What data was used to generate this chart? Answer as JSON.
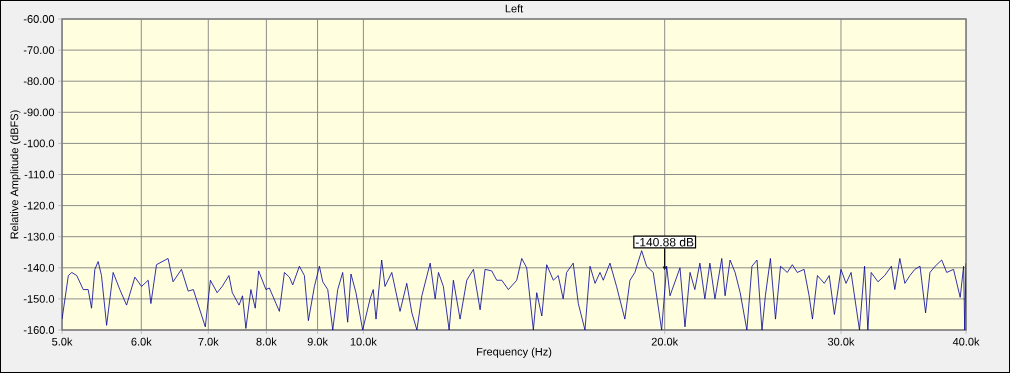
{
  "chart_data": {
    "type": "line",
    "title": "Left",
    "xlabel": "Frequency (Hz)",
    "ylabel": "Relative Amplitude (dBFS)",
    "log": "x",
    "grid": true,
    "xlim": [
      5000,
      40000
    ],
    "ylim": [
      -160,
      -60
    ],
    "xticks": [
      {
        "value": 5000,
        "label": "5.0k"
      },
      {
        "value": 6000,
        "label": "6.0k"
      },
      {
        "value": 7000,
        "label": "7.0k"
      },
      {
        "value": 8000,
        "label": "8.0k"
      },
      {
        "value": 9000,
        "label": "9.0k"
      },
      {
        "value": 10000,
        "label": "10.0k"
      },
      {
        "value": 20000,
        "label": "20.0k"
      },
      {
        "value": 30000,
        "label": "30.0k"
      },
      {
        "value": 40000,
        "label": "40.0k"
      }
    ],
    "yticks": [
      {
        "value": -60,
        "label": "-60.00"
      },
      {
        "value": -70,
        "label": "-70.00"
      },
      {
        "value": -80,
        "label": "-80.00"
      },
      {
        "value": -90,
        "label": "-90.00"
      },
      {
        "value": -100,
        "label": "-100.0"
      },
      {
        "value": -110,
        "label": "-110.0"
      },
      {
        "value": -120,
        "label": "-120.0"
      },
      {
        "value": -130,
        "label": "-130.0"
      },
      {
        "value": -140,
        "label": "-140.0"
      },
      {
        "value": -150,
        "label": "-150.0"
      },
      {
        "value": -160,
        "label": "-160.0"
      }
    ],
    "annotations": [
      {
        "text": "-140.88 dB",
        "x": 20000,
        "y": -140.88
      }
    ],
    "series": [
      {
        "color": "#000099",
        "x": [
          5000,
          5073,
          5113,
          5172,
          5250,
          5310,
          5351,
          5392,
          5433,
          5475,
          5540,
          5624,
          5711,
          5800,
          5912,
          6004,
          6096,
          6134,
          6214,
          6381,
          6455,
          6581,
          6684,
          6763,
          6952,
          7034,
          7144,
          7227,
          7340,
          7398,
          7514,
          7573,
          7633,
          7721,
          7799,
          7860,
          7993,
          8055,
          8180,
          8243,
          8339,
          8435,
          8500,
          8631,
          8731,
          8812,
          8935,
          9038,
          9108,
          9213,
          9320,
          9427,
          9535,
          9645,
          9719,
          9831,
          9984,
          10155,
          10230,
          10295,
          10430,
          10510,
          10675,
          10880,
          11050,
          11180,
          11310,
          11440,
          11660,
          11795,
          11885,
          12020,
          12180,
          12300,
          12490,
          12685,
          12880,
          13080,
          13230,
          13435,
          13590,
          13750,
          13960,
          14230,
          14395,
          14560,
          14785,
          14900,
          15075,
          15245,
          15480,
          15655,
          15835,
          15960,
          16205,
          16395,
          16650,
          16845,
          17040,
          17235,
          17365,
          17635,
          17905,
          18250,
          18465,
          18675,
          18970,
          19185,
          19480,
          19860,
          20090,
          20245,
          20715,
          20955,
          21200,
          21435,
          21685,
          21935,
          22190,
          22450,
          22805,
          22980,
          23245,
          23515,
          23790,
          24160,
          24445,
          24730,
          25015,
          25210,
          25505,
          25805,
          26105,
          26515,
          26825,
          27135,
          27560,
          27880,
          28095,
          28420,
          28870,
          29200,
          29550,
          30000,
          30350,
          30705,
          31305,
          31675,
          31915,
          32160,
          32665,
          33175,
          33690,
          33955,
          34350,
          34750,
          35155,
          35560,
          35985,
          36450,
          36820,
          37255,
          37825,
          38265,
          38870,
          39475,
          39785,
          39880,
          40000
        ],
        "values": [
          -156.5,
          -142.5,
          -141.5,
          -142.5,
          -147,
          -147,
          -153,
          -140.5,
          -138,
          -142.5,
          -158.5,
          -141.5,
          -147,
          -152,
          -143,
          -146,
          -144,
          -151.5,
          -139,
          -137,
          -144.5,
          -140.5,
          -147.5,
          -147,
          -159,
          -144,
          -148,
          -146,
          -142.5,
          -148,
          -152,
          -149,
          -159.5,
          -147,
          -153,
          -141,
          -147,
          -146.5,
          -151.5,
          -154,
          -141.5,
          -143,
          -145.5,
          -139.5,
          -142.5,
          -157,
          -146,
          -139.5,
          -144.5,
          -147,
          -160,
          -147,
          -141.5,
          -157.5,
          -142,
          -148,
          -160,
          -150,
          -147,
          -156.5,
          -137.5,
          -146,
          -141.5,
          -154,
          -145,
          -154.5,
          -160,
          -149,
          -138.5,
          -150,
          -141.5,
          -146,
          -160,
          -144,
          -156.5,
          -144,
          -140.5,
          -153.5,
          -140.5,
          -141,
          -144,
          -144,
          -147,
          -144,
          -137,
          -140,
          -160,
          -148,
          -155.5,
          -139,
          -144,
          -142.5,
          -150,
          -141.5,
          -138.5,
          -151.5,
          -160,
          -139.5,
          -145,
          -141.5,
          -144,
          -138.5,
          -146,
          -156.5,
          -144,
          -141.5,
          -134.5,
          -139.5,
          -141.5,
          -160,
          -139.5,
          -149,
          -140,
          -159,
          -141.5,
          -147,
          -138.5,
          -150,
          -138.5,
          -150,
          -137,
          -149,
          -137.5,
          -141.5,
          -148,
          -160,
          -139.5,
          -137.5,
          -160,
          -149,
          -137,
          -156.5,
          -139.5,
          -141.5,
          -139,
          -141.5,
          -140.5,
          -149,
          -156.5,
          -142.5,
          -145,
          -142.5,
          -155,
          -140.5,
          -145,
          -141.5,
          -160,
          -139.5,
          -160,
          -141.5,
          -144.5,
          -142.5,
          -139.5,
          -147,
          -137,
          -145,
          -142.5,
          -140.5,
          -139.5,
          -154.5,
          -141.5,
          -139.5,
          -137.5,
          -141.5,
          -140.5,
          -149.5,
          -139.5,
          -160,
          -138.5
        ]
      }
    ]
  }
}
